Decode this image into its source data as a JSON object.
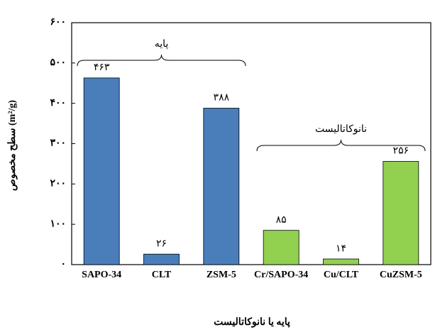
{
  "chart_data": {
    "type": "bar",
    "y_label": "سطح مخصوص (m²/g)",
    "x_label": "پایه یا نانوکاتالیست",
    "annotations": [
      "پایه",
      "نانوکاتالیست"
    ],
    "categories": [
      "SAPO-34",
      "CLT",
      "ZSM-5",
      "Cr/SAPO-34",
      "Cu/CLT",
      "CuZSM-5"
    ],
    "values": [
      463,
      26,
      388,
      85,
      14,
      256
    ],
    "value_labels": [
      "۴۶۳",
      "۲۶",
      "۳۸۸",
      "۸۵",
      "۱۴",
      "۲۵۶"
    ],
    "colors": [
      "#4a7ebb",
      "#4a7ebb",
      "#4a7ebb",
      "#92d050",
      "#92d050",
      "#92d050"
    ],
    "ylim": [
      0,
      600
    ],
    "yticks": [
      {
        "value": 0,
        "label": "۰"
      },
      {
        "value": 100,
        "label": "۱۰۰"
      },
      {
        "value": 200,
        "label": "۲۰۰"
      },
      {
        "value": 300,
        "label": "۳۰۰"
      },
      {
        "value": 400,
        "label": "۴۰۰"
      },
      {
        "value": 500,
        "label": "۵۰۰"
      },
      {
        "value": 600,
        "label": "۶۰۰"
      }
    ],
    "grid": false
  }
}
